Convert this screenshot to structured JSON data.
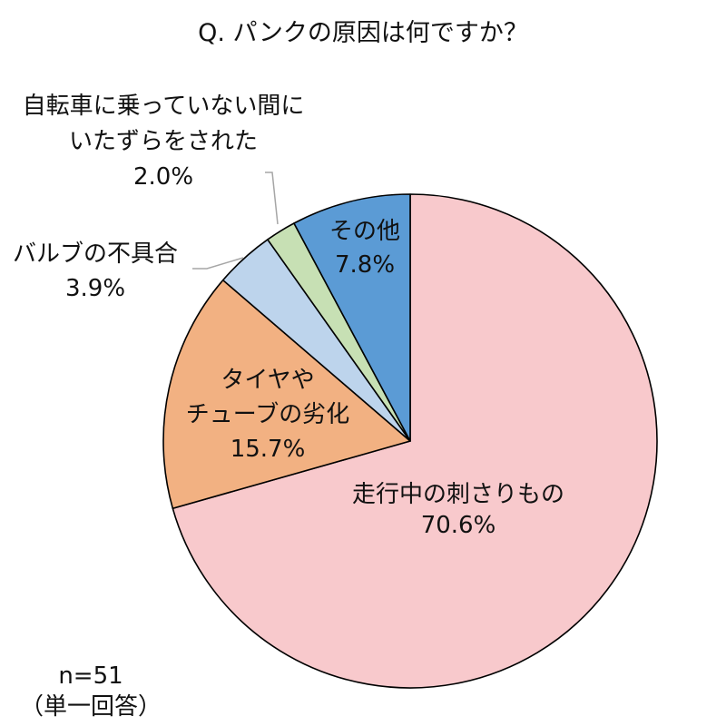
{
  "chart_data": {
    "type": "pie",
    "title": "Q. パンクの原因は何ですか？",
    "start_angle": "12 o'clock",
    "direction": "clockwise",
    "slices": [
      {
        "label": [
          "走行中の刺さりもの"
        ],
        "value_label": "70.6%",
        "value": 70.6,
        "color": "#F8C9CC"
      },
      {
        "label": [
          "タイヤや",
          "チューブの劣化"
        ],
        "value_label": "15.7%",
        "value": 15.7,
        "color": "#F2B182"
      },
      {
        "label": [
          "バルブの不具合"
        ],
        "value_label": "3.9%",
        "value": 3.9,
        "color": "#BDD4EC"
      },
      {
        "label": [
          "自転車に乗っていない間に",
          "いたずらをされた"
        ],
        "value_label": "2.0%",
        "value": 2.0,
        "color": "#C7E0B4"
      },
      {
        "label": [
          "その他"
        ],
        "value_label": "7.8%",
        "value": 7.8,
        "color": "#5B9BD5"
      }
    ]
  },
  "note": {
    "n": "n=51",
    "answer_type": "（単一回答）"
  }
}
